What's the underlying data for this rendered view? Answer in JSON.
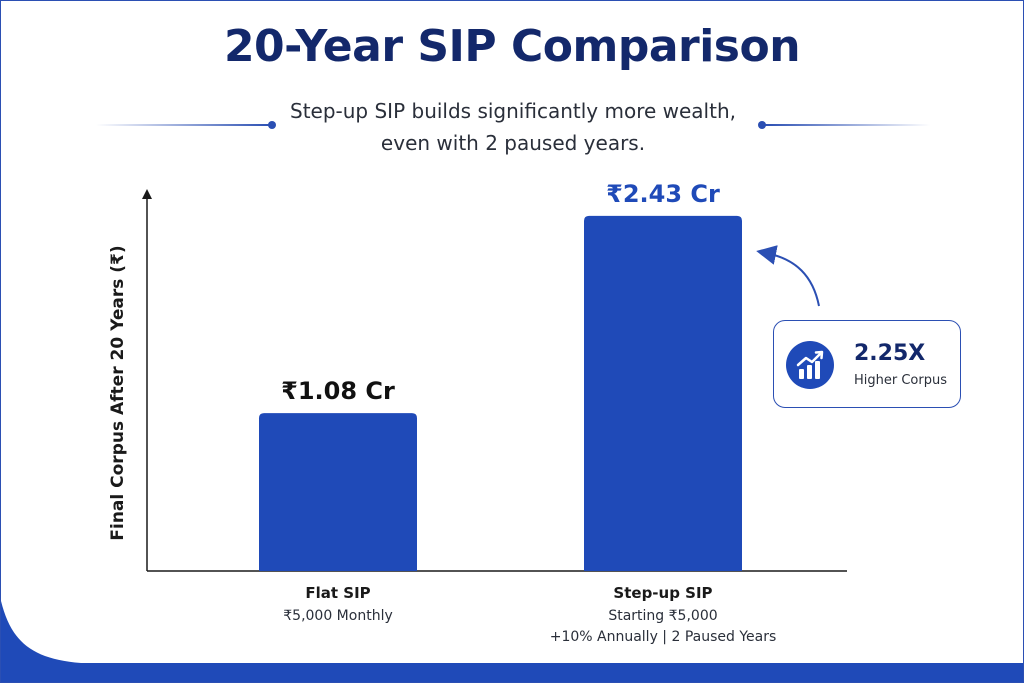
{
  "title": "20-Year SIP Comparison",
  "subtitle_line1": "Step-up SIP builds significantly more wealth,",
  "subtitle_line2": "even with 2 paused years.",
  "colors": {
    "bar": "#1f4ab8",
    "flat_label": "#111111",
    "stepup_label": "#1f4ab8",
    "title": "#13286b"
  },
  "callout": {
    "value": "2.25X",
    "text": "Higher Corpus",
    "icon": "growth-chart-icon"
  },
  "chart_data": {
    "type": "bar",
    "ylabel": "Final Corpus After 20 Years (₹)",
    "ylim": [
      0,
      2.6
    ],
    "grid": false,
    "categories": [
      "Flat SIP",
      "Step-up SIP"
    ],
    "category_details": [
      [
        "₹5,000 Monthly"
      ],
      [
        "Starting ₹5,000",
        "+10% Annually | 2 Paused Years"
      ]
    ],
    "values": [
      1.08,
      2.43
    ],
    "value_labels": [
      "₹1.08 Cr",
      "₹2.43 Cr"
    ],
    "unit": "Cr"
  }
}
